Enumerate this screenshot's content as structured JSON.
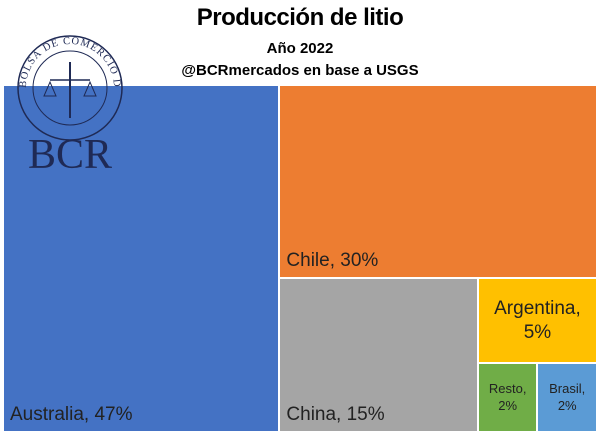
{
  "chart_data": {
    "type": "treemap",
    "title": "Producción de litio",
    "subtitle": "Año 2022",
    "source": "@BCRmercados en base a USGS",
    "logo_ring": "BOLSA DE COMERCIO DE ROSARIO",
    "logo_text": "BCR",
    "categories": [
      "Australia",
      "Chile",
      "China",
      "Argentina",
      "Resto",
      "Brasil"
    ],
    "values": [
      47,
      30,
      15,
      5,
      2,
      2
    ],
    "value_labels": [
      "Australia, 47%",
      "Chile, 30%",
      "China, 15%",
      "Argentina, 5%",
      "Resto, 2%",
      "Brasil, 2%"
    ],
    "colors": [
      "#4472c4",
      "#ed7d31",
      "#a5a5a5",
      "#ffc000",
      "#70ad47",
      "#5b9bd5"
    ]
  }
}
